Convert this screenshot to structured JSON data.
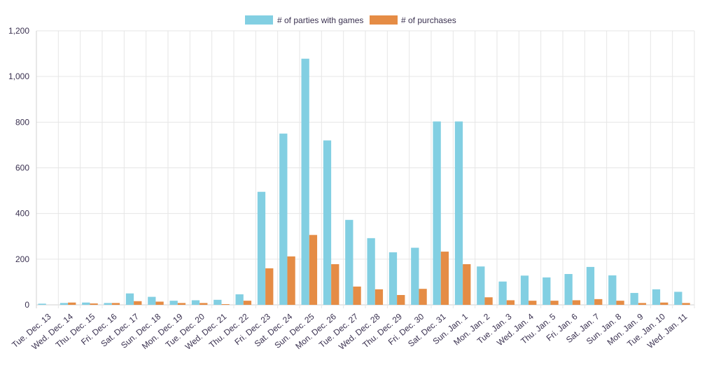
{
  "chart_data": {
    "type": "bar",
    "title": "",
    "xlabel": "",
    "ylabel": "",
    "ylim": [
      0,
      1200
    ],
    "yticks": [
      "0",
      "200",
      "400",
      "600",
      "800",
      "1,000",
      "1,200"
    ],
    "ytick_values": [
      0,
      200,
      400,
      600,
      800,
      1000,
      1200
    ],
    "grid": true,
    "legend_position": "top-center",
    "categories": [
      "Tue. Dec. 13",
      "Wed. Dec. 14",
      "Thu. Dec. 15",
      "Fri. Dec. 16",
      "Sat. Dec. 17",
      "Sun. Dec. 18",
      "Mon. Dec. 19",
      "Tue. Dec. 20",
      "Wed. Dec. 21",
      "Thu. Dec. 22",
      "Fri. Dec. 23",
      "Sat. Dec. 24",
      "Sun. Dec. 25",
      "Mon. Dec. 26",
      "Tue. Dec. 27",
      "Wed. Dec. 28",
      "Thu. Dec. 29",
      "Fri. Dec. 30",
      "Sat. Dec. 31",
      "Sun. Jan. 1",
      "Mon. Jan. 2",
      "Tue. Jan. 3",
      "Wed. Jan. 4",
      "Thu. Jan. 5",
      "Fri. Jan. 6",
      "Sat. Jan. 7",
      "Sun. Jan. 8",
      "Mon. Jan. 9",
      "Tue. Jan. 10",
      "Wed. Jan. 11"
    ],
    "series": [
      {
        "name": "# of parties with games",
        "color": "#82cfe2",
        "values": [
          5,
          8,
          10,
          8,
          50,
          35,
          18,
          20,
          22,
          46,
          495,
          750,
          1078,
          720,
          372,
          292,
          230,
          250,
          803,
          803,
          168,
          102,
          128,
          120,
          135,
          166,
          129,
          52,
          68,
          57
        ]
      },
      {
        "name": "# of purchases",
        "color": "#e58c45",
        "values": [
          0,
          10,
          6,
          8,
          16,
          14,
          8,
          8,
          3,
          18,
          160,
          212,
          306,
          178,
          80,
          68,
          43,
          70,
          233,
          178,
          33,
          20,
          18,
          18,
          20,
          25,
          18,
          8,
          10,
          8
        ]
      }
    ]
  }
}
